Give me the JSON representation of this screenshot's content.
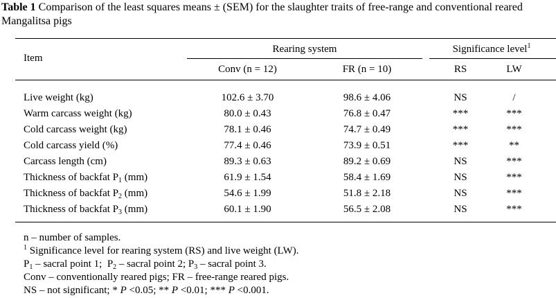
{
  "caption": {
    "label": "Table 1",
    "text": "Comparison of the least squares means ± (SEM) for the slaughter traits of free-range and conventional reared Mangalitsa pigs"
  },
  "header": {
    "item": "Item",
    "rearing_system": "Rearing system",
    "significance": "Significance level",
    "significance_sup": "1",
    "conv": "Conv (n = 12)",
    "fr": "FR (n = 10)",
    "rs": "RS",
    "lw": "LW"
  },
  "rows": [
    {
      "item": "Live weight (kg)",
      "sub": "",
      "suffix": "",
      "conv": "102.6 ± 3.70",
      "fr": "98.6 ± 4.06",
      "rs": "NS",
      "lw": "/"
    },
    {
      "item": "Warm carcass weight (kg)",
      "sub": "",
      "suffix": "",
      "conv": "80.0 ± 0.43",
      "fr": "76.8 ± 0.47",
      "rs": "***",
      "lw": "***"
    },
    {
      "item": "Cold carcass weight (kg)",
      "sub": "",
      "suffix": "",
      "conv": "78.1 ± 0.46",
      "fr": "74.7 ± 0.49",
      "rs": "***",
      "lw": "***"
    },
    {
      "item": "Cold carcass yield (%)",
      "sub": "",
      "suffix": "",
      "conv": "77.4 ± 0.46",
      "fr": "73.9 ± 0.51",
      "rs": "***",
      "lw": "**"
    },
    {
      "item": "Carcass length (cm)",
      "sub": "",
      "suffix": "",
      "conv": "89.3 ± 0.63",
      "fr": "89.2 ± 0.69",
      "rs": "NS",
      "lw": "***"
    },
    {
      "item": "Thickness of backfat P",
      "sub": "1",
      "suffix": " (mm)",
      "conv": "61.9 ± 1.54",
      "fr": "58.4 ± 1.69",
      "rs": "NS",
      "lw": "***"
    },
    {
      "item": "Thickness of backfat P",
      "sub": "2",
      "suffix": " (mm)",
      "conv": "54.6 ± 1.99",
      "fr": "51.8 ± 2.18",
      "rs": "NS",
      "lw": "***"
    },
    {
      "item": "Thickness of backfat P",
      "sub": "3",
      "suffix": " (mm)",
      "conv": "60.1 ± 1.90",
      "fr": "56.5 ± 2.08",
      "rs": "NS",
      "lw": "***"
    }
  ],
  "notes": {
    "n": "n – number of samples.",
    "sig_sup": "1",
    "sig": "Significance level for rearing system (RS) and live weight (LW).",
    "p1a": "P",
    "p1sub": "1",
    "p1b": " – sacral point 1;  ",
    "p2a": "P",
    "p2sub": "2",
    "p2b": " – sacral point 2; ",
    "p3a": "P",
    "p3sub": "3",
    "p3b": " – sacral point 3.",
    "conv_fr": "Conv – conventionally reared pigs; FR – free-range reared pigs.",
    "ns_a": "NS – not significant; * ",
    "ns_p1": "P",
    "ns_b": " <0.05; ** ",
    "ns_p2": "P",
    "ns_c": " <0.01; *** ",
    "ns_p3": "P",
    "ns_d": " <0.001."
  }
}
